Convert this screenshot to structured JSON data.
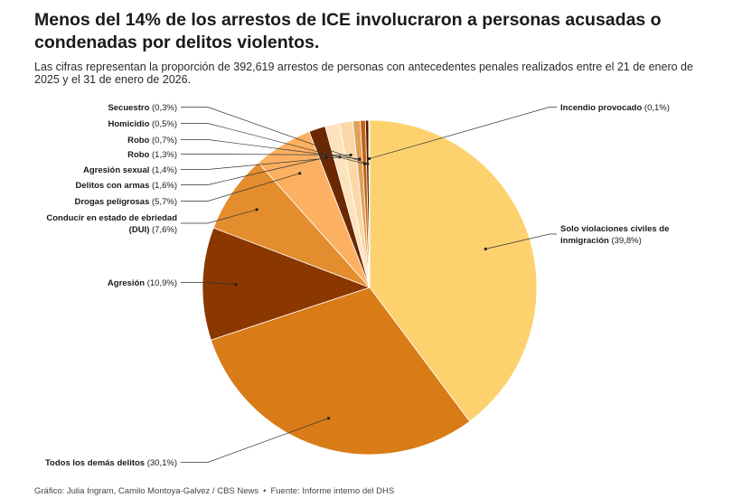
{
  "header": {
    "title": "Menos del 14% de los arrestos de ICE involucraron a personas acusadas o condenadas por delitos violentos.",
    "subtitle": "Las cifras representan la proporción de 392,619 arrestos de personas con antecedentes penales realizados entre el 21 de enero de 2025 y el 31 de enero de 2026."
  },
  "footer": {
    "credit": "Gráfico: Julia Ingram, Camilo Montoya-Galvez / CBS News",
    "separator": "•",
    "source": "Fuente: Informe interno del DHS"
  },
  "chart_data": {
    "type": "pie",
    "title": "Menos del 14% de los arrestos de ICE involucraron a personas acusadas o condenadas por delitos violentos.",
    "unit": "%",
    "total_arrests": 392619,
    "slices": [
      {
        "label": "Solo violaciones civiles de inmigración",
        "name_lines": [
          "Solo violaciones civiles de",
          "inmigración"
        ],
        "pct_text": "(39,8%)",
        "value": 39.8,
        "color": "#fdd26e"
      },
      {
        "label": "Todos los demás delitos",
        "name_lines": [
          "Todos los demás delitos"
        ],
        "pct_text": "(30,1%)",
        "value": 30.1,
        "color": "#d97b17"
      },
      {
        "label": "Agresión",
        "name_lines": [
          "Agresión"
        ],
        "pct_text": "(10,9%)",
        "value": 10.9,
        "color": "#8b3800"
      },
      {
        "label": "Conducir en estado de ebriedad (DUI)",
        "name_lines": [
          "Conducir en estado de ebriedad",
          "(DUI)"
        ],
        "pct_text": "(7,6%)",
        "value": 7.6,
        "color": "#e38d2e"
      },
      {
        "label": "Drogas peligrosas",
        "name_lines": [
          "Drogas peligrosas"
        ],
        "pct_text": "(5,7%)",
        "value": 5.7,
        "color": "#fcb061"
      },
      {
        "label": "Delitos con armas",
        "name_lines": [
          "Delitos con armas"
        ],
        "pct_text": "(1,6%)",
        "value": 1.6,
        "color": "#6b2800"
      },
      {
        "label": "Agresión sexual",
        "name_lines": [
          "Agresión sexual"
        ],
        "pct_text": "(1,4%)",
        "value": 1.4,
        "color": "#fde3bd"
      },
      {
        "label": "Robo",
        "name_lines": [
          "Robo"
        ],
        "pct_text": "(1,3%)",
        "value": 1.3,
        "color": "#fbd8a7"
      },
      {
        "label": "Robo",
        "name_lines": [
          "Robo"
        ],
        "pct_text": "(0,7%)",
        "value": 0.7,
        "color": "#dea25c"
      },
      {
        "label": "Homicidio",
        "name_lines": [
          "Homicidio"
        ],
        "pct_text": "(0,5%)",
        "value": 0.5,
        "color": "#c6610e"
      },
      {
        "label": "Secuestro",
        "name_lines": [
          "Secuestro"
        ],
        "pct_text": "(0,3%)",
        "value": 0.3,
        "color": "#4a1800"
      },
      {
        "label": "Incendio provocado",
        "name_lines": [
          "Incendio provocado"
        ],
        "pct_text": "(0,1%)",
        "value": 0.1,
        "color": "#f3c07f"
      }
    ]
  }
}
